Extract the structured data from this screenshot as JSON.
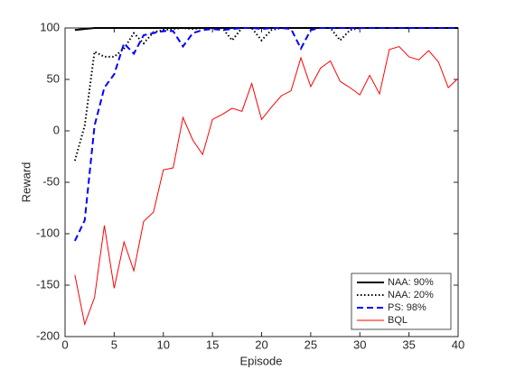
{
  "chart_data": {
    "type": "line",
    "xlabel": "Episode",
    "ylabel": "Reward",
    "x": [
      1,
      2,
      3,
      4,
      5,
      6,
      7,
      8,
      9,
      10,
      11,
      12,
      13,
      14,
      15,
      16,
      17,
      18,
      19,
      20,
      21,
      22,
      23,
      24,
      25,
      26,
      27,
      28,
      29,
      30,
      31,
      32,
      33,
      34,
      35,
      36,
      37,
      38,
      39,
      40
    ],
    "xlim": [
      0,
      40
    ],
    "xticks": [
      0,
      5,
      10,
      15,
      20,
      25,
      30,
      35,
      40
    ],
    "ylim": [
      -200,
      100
    ],
    "yticks": [
      -200,
      -150,
      -100,
      -50,
      0,
      50,
      100
    ],
    "legend": "lower right",
    "series": [
      {
        "name": "NAA: 90%",
        "color": "#000000",
        "dash": "solid",
        "width": 2,
        "values": [
          98,
          99,
          100,
          100,
          100,
          100,
          100,
          100,
          100,
          100,
          100,
          100,
          100,
          100,
          100,
          100,
          100,
          100,
          100,
          100,
          100,
          100,
          100,
          100,
          100,
          100,
          100,
          100,
          100,
          100,
          100,
          100,
          100,
          100,
          100,
          100,
          100,
          100,
          100,
          100
        ]
      },
      {
        "name": "NAA: 20%",
        "color": "#000000",
        "dash": "dotted",
        "width": 2,
        "values": [
          -29,
          5,
          77,
          72,
          72,
          80,
          95,
          85,
          96,
          98,
          99,
          100,
          99,
          100,
          100,
          100,
          88,
          100,
          100,
          88,
          98,
          100,
          100,
          100,
          100,
          100,
          100,
          88,
          98,
          100,
          100,
          100,
          100,
          100,
          100,
          100,
          100,
          100,
          100,
          100
        ]
      },
      {
        "name": "PS: 98%",
        "color": "#0000ff",
        "dash": "dashed",
        "width": 2,
        "values": [
          -107,
          -87,
          5,
          42,
          55,
          85,
          75,
          93,
          95,
          97,
          97,
          82,
          95,
          98,
          99,
          98,
          99,
          100,
          100,
          99,
          100,
          100,
          99,
          80,
          98,
          100,
          100,
          100,
          100,
          100,
          100,
          100,
          100,
          100,
          100,
          100,
          100,
          100,
          100,
          100
        ]
      },
      {
        "name": "BQL",
        "color": "#ff0000",
        "dash": "solid",
        "width": 1,
        "values": [
          -140,
          -188,
          -162,
          -92,
          -153,
          -108,
          -136,
          -88,
          -79,
          -38,
          -36,
          13,
          -9,
          -23,
          11,
          16,
          22,
          19,
          46,
          11,
          23,
          34,
          39,
          71,
          43,
          61,
          68,
          48,
          42,
          35,
          54,
          36,
          79,
          82,
          72,
          69,
          78,
          67,
          42,
          51
        ]
      }
    ]
  }
}
